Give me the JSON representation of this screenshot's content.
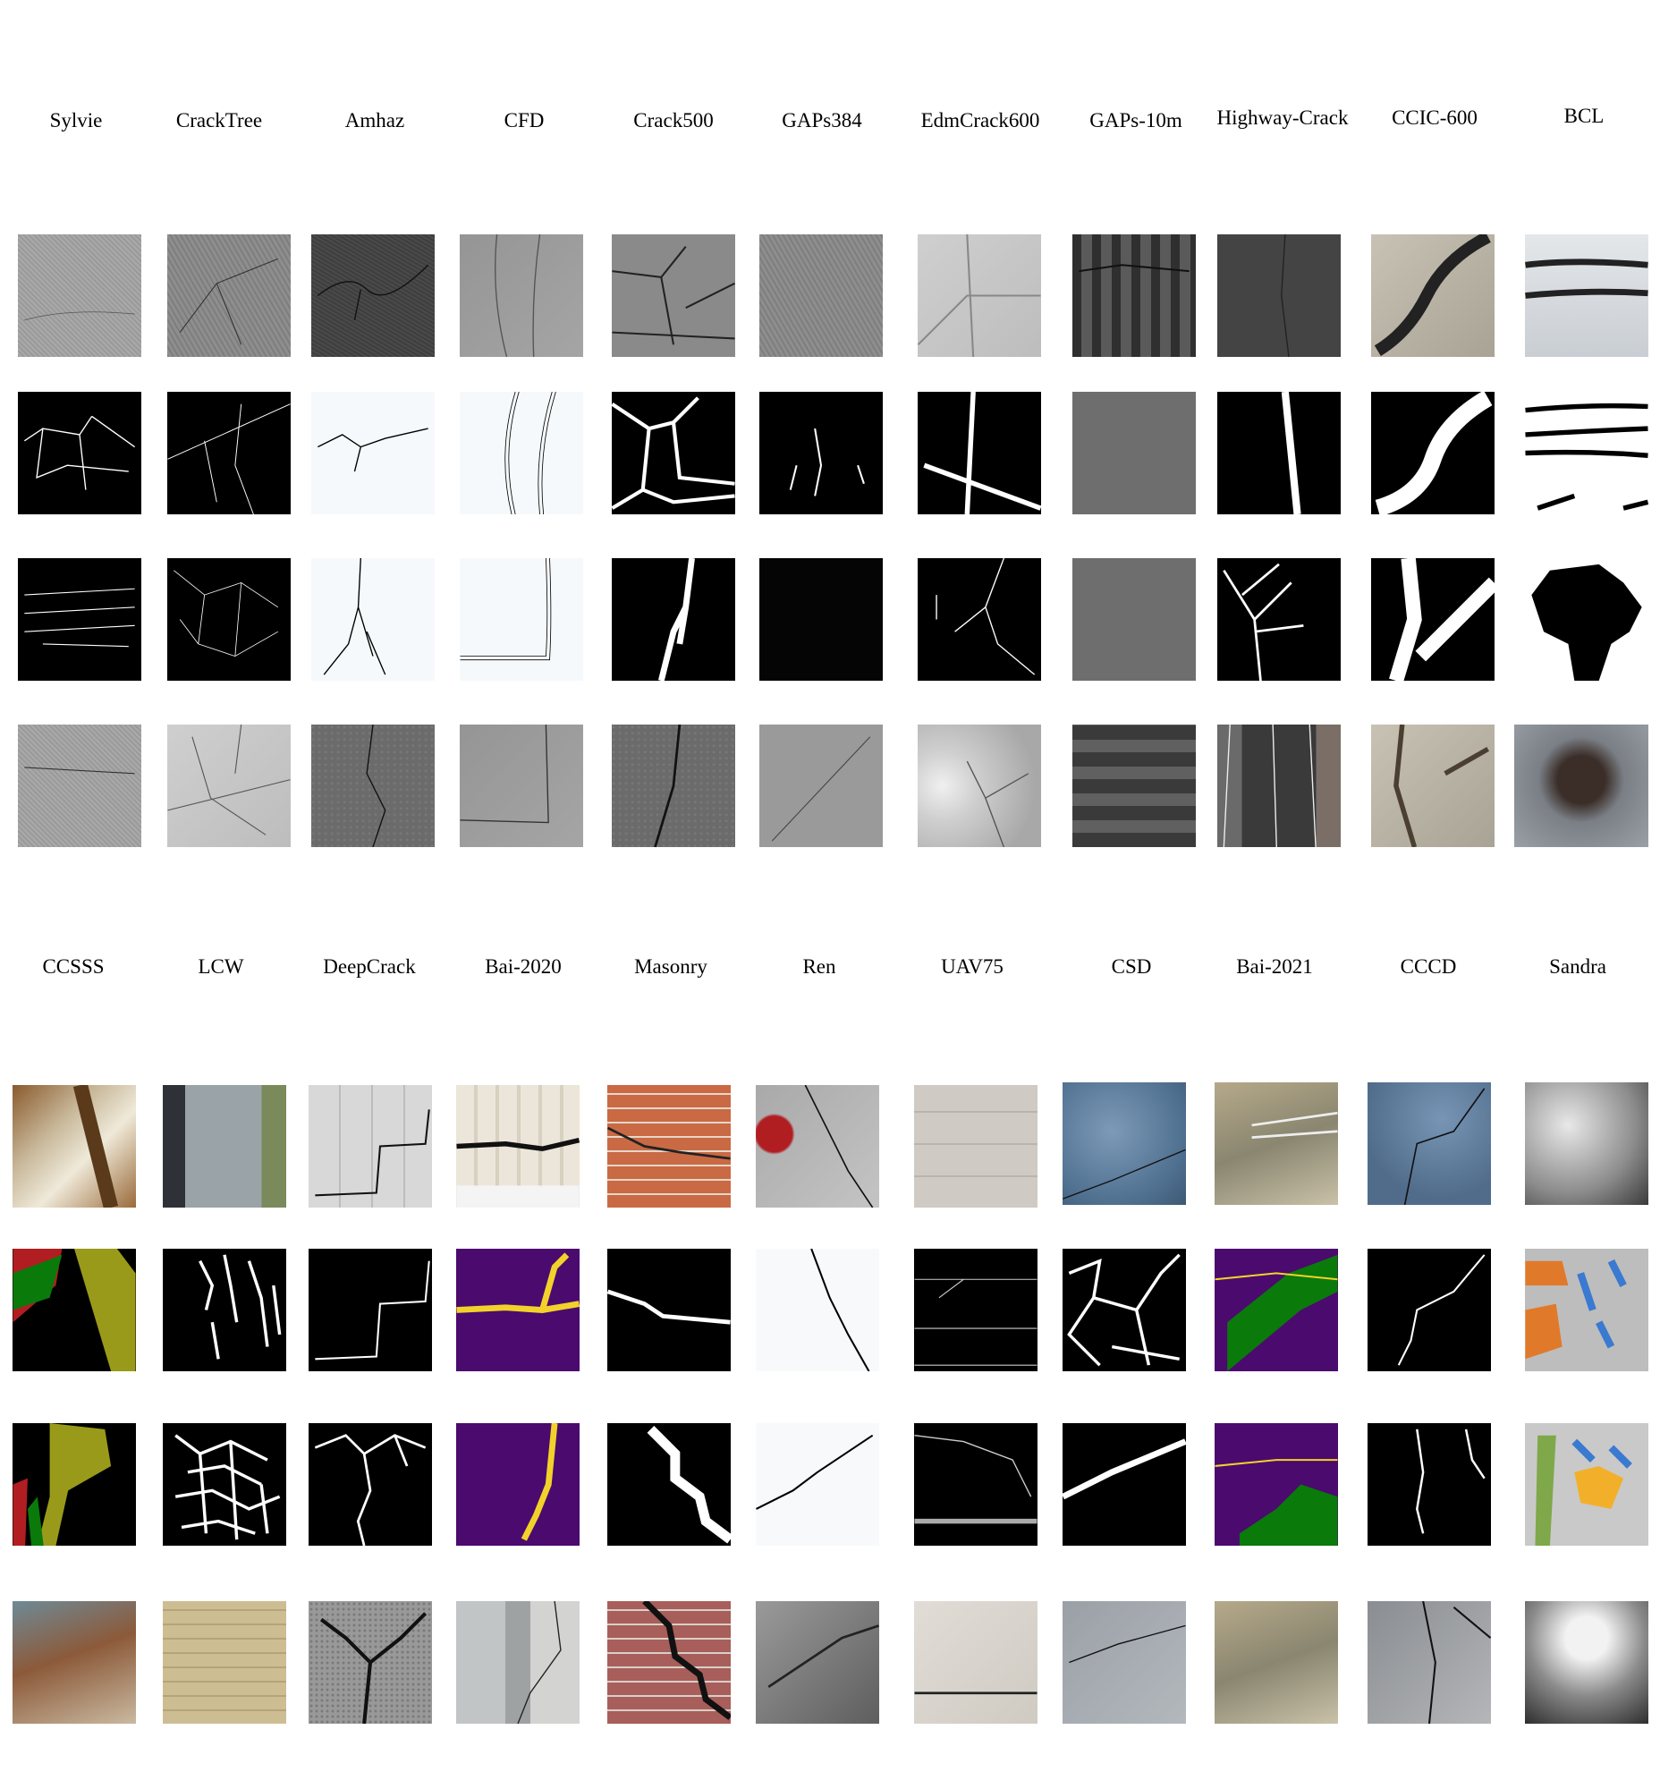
{
  "colors": {
    "mask_background": "#000000",
    "crack": "#ffffff",
    "yellow_label": "#f2d22a",
    "purple_label": "#4b0a6e",
    "green_label": "#0a7a0a",
    "red_label": "#b11e22",
    "olive_label": "#9a9a1a"
  },
  "top_group": {
    "datasets": [
      "Sylvie",
      "CrackTree",
      "Amhaz",
      "CFD",
      "Crack500",
      "GAPs384",
      "EdmCrack600",
      "GAPs-10m",
      "Highway-Crack",
      "CCIC-600",
      "BCL"
    ]
  },
  "bottom_group": {
    "datasets": [
      "CCSSS",
      "LCW",
      "DeepCrack",
      "Bai-2020",
      "Masonry",
      "Ren",
      "UAV75",
      "CSD",
      "Bai-2021",
      "CCCD",
      "Sandra"
    ]
  }
}
